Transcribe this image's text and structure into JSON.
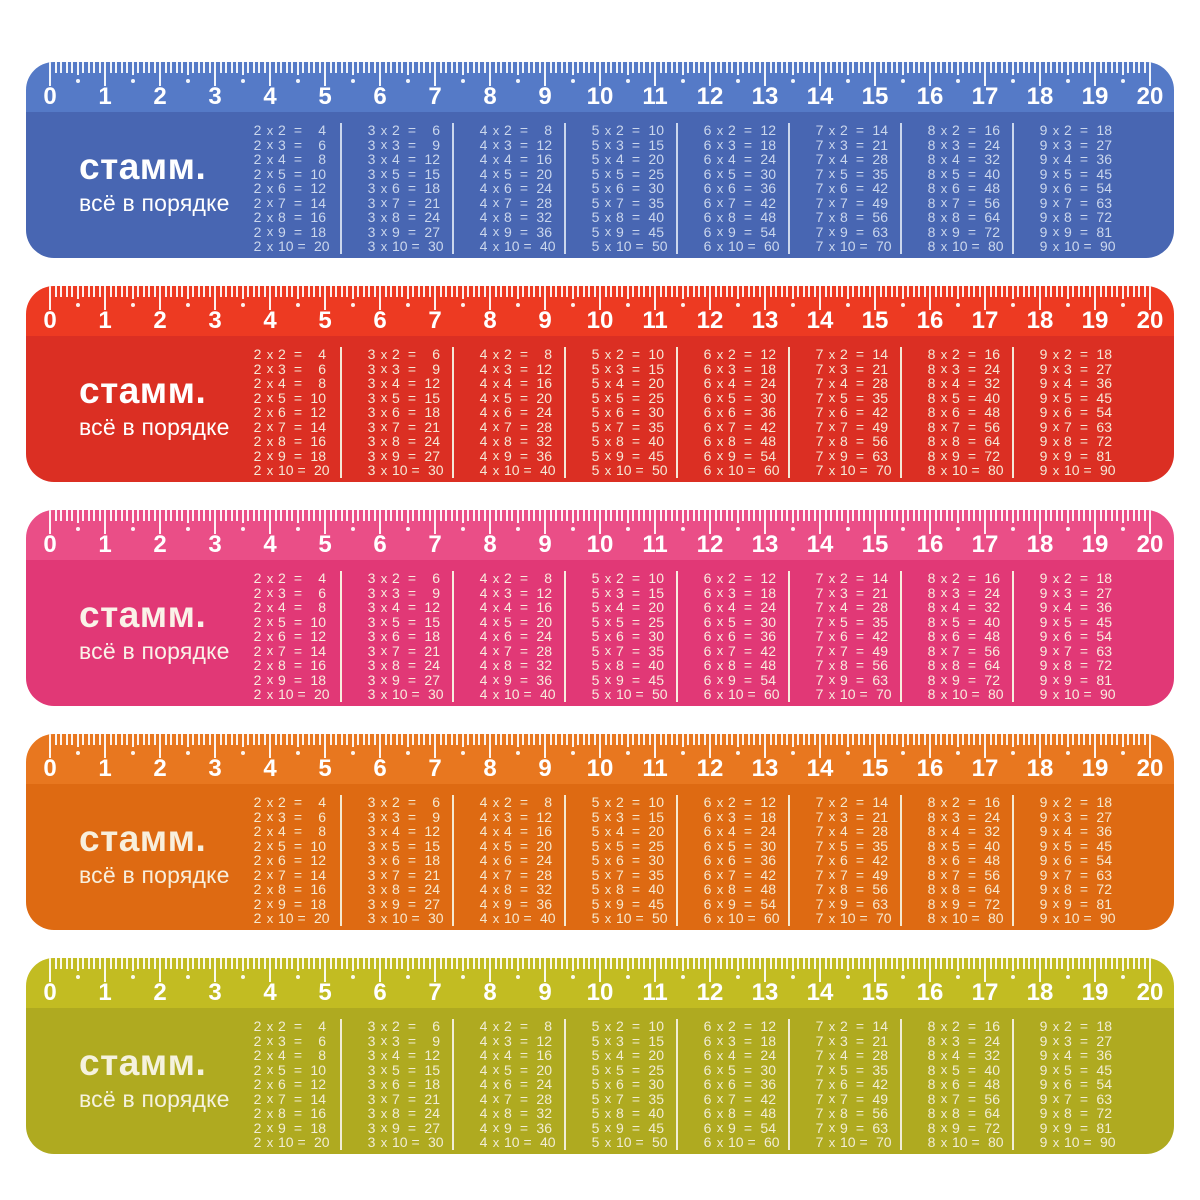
{
  "page": {
    "background": "#FFFFFF"
  },
  "brand": {
    "logo": "стамм.",
    "tagline": "всё в порядке"
  },
  "scale": {
    "numbers": [
      "0",
      "1",
      "2",
      "3",
      "4",
      "5",
      "6",
      "7",
      "8",
      "9",
      "10",
      "11",
      "12",
      "13",
      "14",
      "15",
      "16",
      "17",
      "18",
      "19",
      "20"
    ]
  },
  "multiplication_table": {
    "columns": [
      {
        "n": 2,
        "rows": [
          [
            2,
            2,
            4
          ],
          [
            2,
            3,
            6
          ],
          [
            2,
            4,
            8
          ],
          [
            2,
            5,
            10
          ],
          [
            2,
            6,
            12
          ],
          [
            2,
            7,
            14
          ],
          [
            2,
            8,
            16
          ],
          [
            2,
            9,
            18
          ],
          [
            2,
            10,
            20
          ]
        ]
      },
      {
        "n": 3,
        "rows": [
          [
            3,
            2,
            6
          ],
          [
            3,
            3,
            9
          ],
          [
            3,
            4,
            12
          ],
          [
            3,
            5,
            15
          ],
          [
            3,
            6,
            18
          ],
          [
            3,
            7,
            21
          ],
          [
            3,
            8,
            24
          ],
          [
            3,
            9,
            27
          ],
          [
            3,
            10,
            30
          ]
        ]
      },
      {
        "n": 4,
        "rows": [
          [
            4,
            2,
            8
          ],
          [
            4,
            3,
            12
          ],
          [
            4,
            4,
            16
          ],
          [
            4,
            5,
            20
          ],
          [
            4,
            6,
            24
          ],
          [
            4,
            7,
            28
          ],
          [
            4,
            8,
            32
          ],
          [
            4,
            9,
            36
          ],
          [
            4,
            10,
            40
          ]
        ]
      },
      {
        "n": 5,
        "rows": [
          [
            5,
            2,
            10
          ],
          [
            5,
            3,
            15
          ],
          [
            5,
            4,
            20
          ],
          [
            5,
            5,
            25
          ],
          [
            5,
            6,
            30
          ],
          [
            5,
            7,
            35
          ],
          [
            5,
            8,
            40
          ],
          [
            5,
            9,
            45
          ],
          [
            5,
            10,
            50
          ]
        ]
      },
      {
        "n": 6,
        "rows": [
          [
            6,
            2,
            12
          ],
          [
            6,
            3,
            18
          ],
          [
            6,
            4,
            24
          ],
          [
            6,
            5,
            30
          ],
          [
            6,
            6,
            36
          ],
          [
            6,
            7,
            42
          ],
          [
            6,
            8,
            48
          ],
          [
            6,
            9,
            54
          ],
          [
            6,
            10,
            60
          ]
        ]
      },
      {
        "n": 7,
        "rows": [
          [
            7,
            2,
            14
          ],
          [
            7,
            3,
            21
          ],
          [
            7,
            4,
            28
          ],
          [
            7,
            5,
            35
          ],
          [
            7,
            6,
            42
          ],
          [
            7,
            7,
            49
          ],
          [
            7,
            8,
            56
          ],
          [
            7,
            9,
            63
          ],
          [
            7,
            10,
            70
          ]
        ]
      },
      {
        "n": 8,
        "rows": [
          [
            8,
            2,
            16
          ],
          [
            8,
            3,
            24
          ],
          [
            8,
            4,
            32
          ],
          [
            8,
            5,
            40
          ],
          [
            8,
            6,
            48
          ],
          [
            8,
            7,
            56
          ],
          [
            8,
            8,
            64
          ],
          [
            8,
            9,
            72
          ],
          [
            8,
            10,
            80
          ]
        ]
      },
      {
        "n": 9,
        "rows": [
          [
            9,
            2,
            18
          ],
          [
            9,
            3,
            27
          ],
          [
            9,
            4,
            36
          ],
          [
            9,
            5,
            45
          ],
          [
            9,
            6,
            54
          ],
          [
            9,
            7,
            63
          ],
          [
            9,
            8,
            72
          ],
          [
            9,
            9,
            81
          ],
          [
            9,
            10,
            90
          ]
        ]
      }
    ],
    "multiply_sign": "x",
    "equals_sign": "="
  },
  "rulers": [
    {
      "name": "blue",
      "band_color": "#557AC7",
      "body_color": "#4866B2",
      "table_text_color": "#CBD7ED",
      "logo_color": "#FFFFFF",
      "scale_color": "#FFFFFF"
    },
    {
      "name": "red",
      "band_color": "#ED3A22",
      "body_color": "#DB2F23",
      "table_text_color": "#F5E8D6",
      "logo_color": "#FFFFFF",
      "scale_color": "#FFFFFF"
    },
    {
      "name": "pink",
      "band_color": "#EA4E87",
      "body_color": "#E13876",
      "table_text_color": "#F8ECDE",
      "logo_color": "#FAF2E8",
      "scale_color": "#FFFFFF"
    },
    {
      "name": "orange",
      "band_color": "#E8771F",
      "body_color": "#DE6A12",
      "table_text_color": "#F6E9CF",
      "logo_color": "#F8EFDC",
      "scale_color": "#FFFFFF"
    },
    {
      "name": "olive",
      "band_color": "#C2BC22",
      "body_color": "#AFAA20",
      "table_text_color": "#F1EDD5",
      "logo_color": "#F5F2DE",
      "scale_color": "#FFFFFF"
    }
  ],
  "layout_constants": {}
}
